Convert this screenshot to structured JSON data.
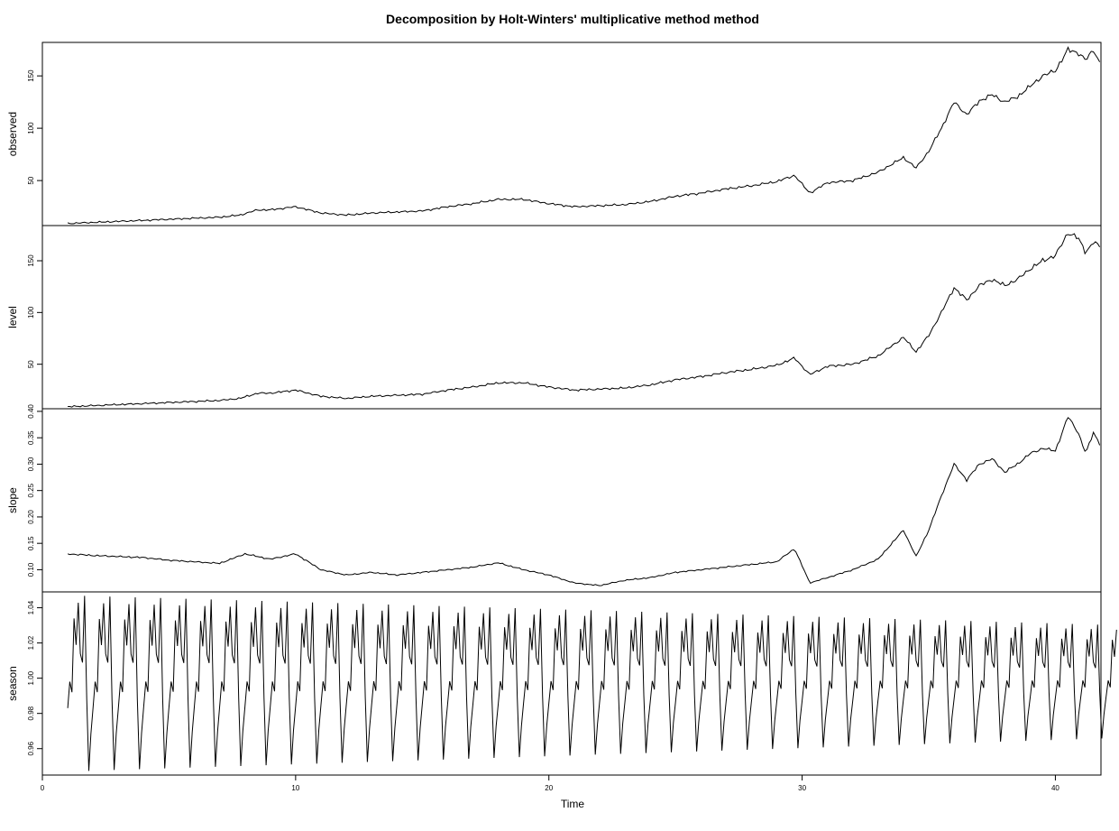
{
  "chart_data": {
    "type": "line",
    "title": "Decomposition by Holt-Winters' multiplicative method method",
    "xlabel": "Time",
    "xlim": [
      0,
      41.8
    ],
    "x_ticks": [
      0,
      10,
      20,
      30,
      40
    ],
    "x_tick_labels": [
      "0",
      "10",
      "20",
      "30",
      "40"
    ],
    "frequency": 12,
    "grid": false,
    "panels": [
      {
        "name": "observed",
        "ylabel": "observed",
        "ylim": [
          7,
          182
        ],
        "y_ticks": [
          50,
          100,
          150
        ],
        "y_tick_labels": [
          "50",
          "100",
          "150"
        ],
        "x": [
          1,
          2,
          3,
          4,
          5,
          6,
          7,
          7.8,
          8.5,
          9,
          10,
          11,
          12,
          13,
          14,
          15,
          16,
          17,
          18,
          19,
          20,
          21,
          22,
          23,
          24,
          25,
          26,
          27,
          28,
          29,
          29.7,
          30.3,
          31,
          32,
          33,
          34,
          34.5,
          35,
          35.5,
          36,
          36.5,
          37,
          37.5,
          38,
          38.5,
          39,
          39.5,
          40,
          40.5,
          40.9,
          41.2,
          41.5,
          41.8
        ],
        "values": [
          9,
          10,
          11,
          12,
          13,
          14,
          15,
          17,
          22,
          22,
          25,
          19,
          17,
          19,
          20,
          21,
          25,
          28,
          32,
          32,
          28,
          25,
          26,
          27,
          30,
          35,
          38,
          42,
          45,
          49,
          55,
          38,
          48,
          50,
          58,
          72,
          62,
          78,
          100,
          125,
          113,
          126,
          132,
          125,
          130,
          140,
          150,
          155,
          175,
          172,
          165,
          175,
          160
        ]
      },
      {
        "name": "level",
        "ylabel": "level",
        "ylim": [
          7,
          184
        ],
        "y_ticks": [
          50,
          100,
          150
        ],
        "y_tick_labels": [
          "50",
          "100",
          "150"
        ],
        "x": [
          1,
          2,
          3,
          4,
          5,
          6,
          7,
          7.8,
          8.5,
          9,
          10,
          11,
          12,
          13,
          14,
          15,
          16,
          17,
          18,
          19,
          20,
          21,
          22,
          23,
          24,
          25,
          26,
          27,
          28,
          29,
          29.7,
          30.3,
          31,
          32,
          33,
          34,
          34.5,
          35,
          35.5,
          36,
          36.5,
          37,
          37.5,
          38,
          38.5,
          39,
          39.5,
          40,
          40.5,
          40.9,
          41.2,
          41.5,
          41.8
        ],
        "values": [
          9,
          10,
          11,
          12,
          13,
          14,
          15,
          17,
          22,
          22,
          25,
          19,
          17,
          19,
          20,
          21,
          25,
          28,
          32,
          32,
          28,
          25,
          26,
          27,
          30,
          35,
          38,
          42,
          45,
          49,
          56,
          40,
          48,
          50,
          58,
          76,
          62,
          78,
          100,
          124,
          112,
          126,
          132,
          126,
          132,
          142,
          150,
          155,
          177,
          172,
          158,
          168,
          163
        ]
      },
      {
        "name": "slope",
        "ylabel": "slope",
        "ylim": [
          0.058,
          0.405
        ],
        "y_ticks": [
          0.1,
          0.15,
          0.2,
          0.25,
          0.3,
          0.35,
          0.4
        ],
        "y_tick_labels": [
          "0.10",
          "0.15",
          "0.20",
          "0.25",
          "0.30",
          "0.35",
          "0.40"
        ],
        "x": [
          1,
          2,
          3,
          4,
          5,
          6,
          7,
          8,
          9,
          10,
          11,
          12,
          13,
          14,
          15,
          16,
          17,
          18,
          19,
          20,
          21,
          22,
          23,
          24,
          25,
          26,
          27,
          28,
          29,
          29.7,
          30.3,
          31,
          32,
          33,
          34,
          34.5,
          35,
          35.5,
          36,
          36.5,
          37,
          37.5,
          38,
          38.5,
          39,
          39.5,
          40,
          40.5,
          40.9,
          41.2,
          41.5,
          41.8
        ],
        "values": [
          0.13,
          0.127,
          0.125,
          0.123,
          0.118,
          0.115,
          0.112,
          0.13,
          0.12,
          0.13,
          0.1,
          0.09,
          0.095,
          0.09,
          0.095,
          0.1,
          0.105,
          0.113,
          0.1,
          0.09,
          0.075,
          0.07,
          0.08,
          0.085,
          0.095,
          0.1,
          0.105,
          0.11,
          0.115,
          0.14,
          0.075,
          0.085,
          0.1,
          0.12,
          0.175,
          0.125,
          0.175,
          0.24,
          0.3,
          0.27,
          0.3,
          0.31,
          0.285,
          0.3,
          0.32,
          0.33,
          0.325,
          0.39,
          0.36,
          0.32,
          0.36,
          0.335
        ]
      },
      {
        "name": "season",
        "ylabel": "season",
        "ylim": [
          0.945,
          1.049
        ],
        "y_ticks": [
          0.96,
          0.98,
          1.0,
          1.02,
          1.04
        ],
        "y_tick_labels": [
          "0.96",
          "0.98",
          "1.00",
          "1.02",
          "1.04"
        ],
        "start": 1,
        "seasonal_pattern": [
          0.983,
          0.998,
          0.992,
          1.034,
          1.019,
          1.043,
          1.014,
          1.009,
          1.047,
          0.988,
          0.947,
          0.968
        ],
        "amplitude_end_ratio": 0.64,
        "values_note_n": 498
      }
    ]
  }
}
